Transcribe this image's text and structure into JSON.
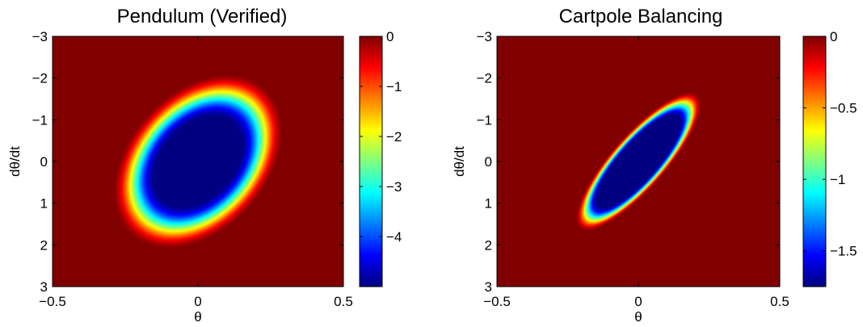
{
  "chart_data": [
    {
      "type": "heatmap",
      "title": "Pendulum (Verified)",
      "xlabel": "θ",
      "ylabel": "dθ/dt",
      "xlim": [
        -0.5,
        0.5
      ],
      "ylim": [
        -3,
        3
      ],
      "y_reversed": true,
      "xticks": [
        -0.5,
        0,
        0.5
      ],
      "xtick_labels": [
        "−0.5",
        "0",
        "0.5"
      ],
      "yticks": [
        -3,
        -2,
        -1,
        0,
        1,
        2,
        3
      ],
      "ytick_labels": [
        "−3",
        "−2",
        "−1",
        "0",
        "1",
        "2",
        "3"
      ],
      "colorbar": {
        "min": -5.0,
        "max": 0,
        "ticks": [
          0,
          -1,
          -2,
          -3,
          -4
        ],
        "tick_labels": [
          "0",
          "−1",
          "−2",
          "−3",
          "−4"
        ],
        "colormap": "jet"
      },
      "region": {
        "shape": "ellipse",
        "center": [
          0,
          0
        ],
        "semi_axes_theta_dtheta": [
          0.25,
          1.8
        ],
        "correlation": -0.35,
        "inner_value": -5.0,
        "outer_value": 0,
        "falloff_start": 0.58,
        "falloff_end": 1.18
      },
      "grid": false
    },
    {
      "type": "heatmap",
      "title": "Cartpole Balancing",
      "xlabel": "θ",
      "ylabel": "dθ/dt",
      "xlim": [
        -0.5,
        0.5
      ],
      "ylim": [
        -3,
        3
      ],
      "y_reversed": true,
      "xticks": [
        -0.5,
        0,
        0.5
      ],
      "xtick_labels": [
        "−0.5",
        "0",
        "0.5"
      ],
      "yticks": [
        -3,
        -2,
        -1,
        0,
        1,
        2,
        3
      ],
      "ytick_labels": [
        "−3",
        "−2",
        "−1",
        "0",
        "1",
        "2",
        "3"
      ],
      "colorbar": {
        "min": -1.75,
        "max": 0,
        "ticks": [
          0,
          -0.5,
          -1,
          -1.5
        ],
        "tick_labels": [
          "0",
          "−0.5",
          "−1",
          "−1.5"
        ],
        "colormap": "jet"
      },
      "region": {
        "shape": "ellipse",
        "center": [
          0,
          0
        ],
        "semi_axes_theta_dtheta": [
          0.2,
          1.5
        ],
        "correlation": -0.83,
        "inner_value": -1.75,
        "outer_value": 0,
        "falloff_start": 0.72,
        "falloff_end": 1.12
      },
      "grid": false
    }
  ]
}
